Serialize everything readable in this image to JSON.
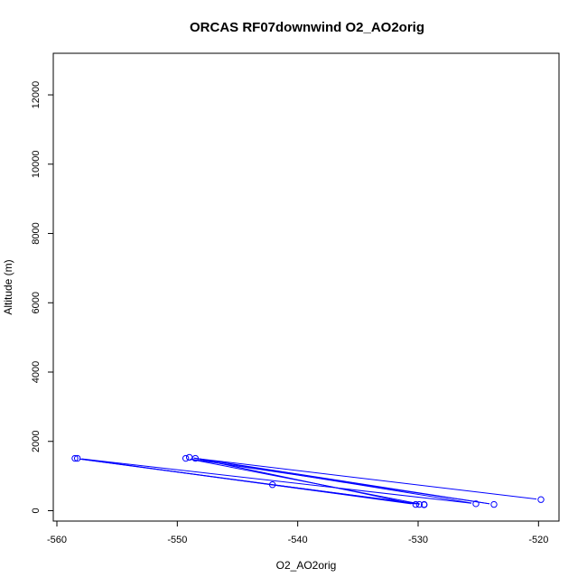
{
  "chart_data": {
    "type": "scatter",
    "title": "ORCAS RF07downwind O2_AO2orig",
    "xlabel": "O2_AO2orig",
    "ylabel": "Altitude (m)",
    "xlim": [
      -560.3,
      -518.3
    ],
    "ylim": [
      -300,
      13200
    ],
    "x_ticks": [
      -560,
      -550,
      -540,
      -530,
      -520
    ],
    "y_ticks": [
      0,
      2000,
      4000,
      6000,
      8000,
      10000,
      12000
    ],
    "grid": false,
    "series_color": "#0000ff",
    "series": [
      {
        "points": [
          {
            "x": -519.8,
            "y": 320
          },
          {
            "x": -548.5,
            "y": 1510
          },
          {
            "x": -530.2,
            "y": 180
          },
          {
            "x": -558.3,
            "y": 1510
          },
          {
            "x": -525.2,
            "y": 200
          },
          {
            "x": -549.0,
            "y": 1540
          },
          {
            "x": -523.7,
            "y": 180
          },
          {
            "x": -549.3,
            "y": 1510
          },
          {
            "x": -529.5,
            "y": 170
          },
          {
            "x": -558.5,
            "y": 1510
          },
          {
            "x": -529.9,
            "y": 180
          },
          {
            "x": -542.1,
            "y": 750
          },
          {
            "x": -529.5,
            "y": 180
          }
        ]
      }
    ]
  }
}
